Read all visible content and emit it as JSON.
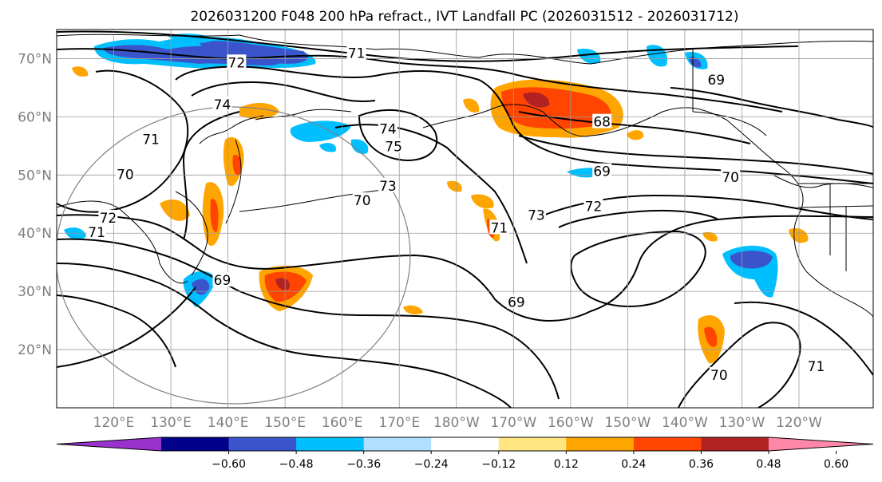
{
  "title": "2026031200 F048 200 hPa refract., IVT Landfall PC (2026031512 - 2026031712)",
  "map": {
    "lon_range": [
      110,
      253
    ],
    "lat_range": [
      10,
      75
    ],
    "lat_ticks": [
      {
        "value": 20,
        "label": "20°N"
      },
      {
        "value": 30,
        "label": "30°N"
      },
      {
        "value": 40,
        "label": "40°N"
      },
      {
        "value": 50,
        "label": "50°N"
      },
      {
        "value": 60,
        "label": "60°N"
      },
      {
        "value": 70,
        "label": "70°N"
      }
    ],
    "lon_ticks": [
      {
        "value": 120,
        "label": "120°E"
      },
      {
        "value": 130,
        "label": "130°E"
      },
      {
        "value": 140,
        "label": "140°E"
      },
      {
        "value": 150,
        "label": "150°E"
      },
      {
        "value": 160,
        "label": "160°E"
      },
      {
        "value": 170,
        "label": "170°E"
      },
      {
        "value": 180,
        "label": "180°W"
      },
      {
        "value": 190,
        "label": "170°W"
      },
      {
        "value": 200,
        "label": "160°W"
      },
      {
        "value": 210,
        "label": "150°W"
      },
      {
        "value": 220,
        "label": "140°W"
      },
      {
        "value": 230,
        "label": "130°W"
      },
      {
        "value": 240,
        "label": "120°W"
      }
    ],
    "grid": true,
    "contour_labels": [
      {
        "text": "71",
        "lon": 162.5,
        "lat": 70.8
      },
      {
        "text": "72",
        "lon": 141.5,
        "lat": 69.2
      },
      {
        "text": "74",
        "lon": 139.0,
        "lat": 62.0
      },
      {
        "text": "71",
        "lon": 126.5,
        "lat": 56.0
      },
      {
        "text": "70",
        "lon": 122.0,
        "lat": 50.0
      },
      {
        "text": "72",
        "lon": 119.0,
        "lat": 42.5
      },
      {
        "text": "71",
        "lon": 117.0,
        "lat": 40.0
      },
      {
        "text": "74",
        "lon": 168.0,
        "lat": 57.8
      },
      {
        "text": "75",
        "lon": 169.0,
        "lat": 54.8
      },
      {
        "text": "73",
        "lon": 168.0,
        "lat": 48.0
      },
      {
        "text": "70",
        "lon": 163.5,
        "lat": 45.5
      },
      {
        "text": "71",
        "lon": 187.5,
        "lat": 40.8
      },
      {
        "text": "69",
        "lon": 139.0,
        "lat": 31.8
      },
      {
        "text": "69",
        "lon": 190.5,
        "lat": 28.0
      },
      {
        "text": "69",
        "lon": 225.5,
        "lat": 66.2
      },
      {
        "text": "68",
        "lon": 205.5,
        "lat": 59.0
      },
      {
        "text": "69",
        "lon": 205.5,
        "lat": 50.5
      },
      {
        "text": "70",
        "lon": 228.0,
        "lat": 49.5
      },
      {
        "text": "73",
        "lon": 194.0,
        "lat": 43.0
      },
      {
        "text": "72",
        "lon": 204.0,
        "lat": 44.5
      },
      {
        "text": "70",
        "lon": 226.0,
        "lat": 15.5
      },
      {
        "text": "71",
        "lon": 243.0,
        "lat": 17.0
      }
    ]
  },
  "colorbar": {
    "ticks": [
      "−0.60",
      "−0.48",
      "−0.36",
      "−0.24",
      "−0.12",
      "0.12",
      "0.24",
      "0.36",
      "0.48",
      "0.60"
    ],
    "colors": [
      "#9932cc",
      "#00008b",
      "#3a55cc",
      "#00bfff",
      "#b0e0ff",
      "#ffffff",
      "#ffe680",
      "#ffa500",
      "#ff4500",
      "#b22222",
      "#ff88aa"
    ],
    "extend": "both"
  }
}
